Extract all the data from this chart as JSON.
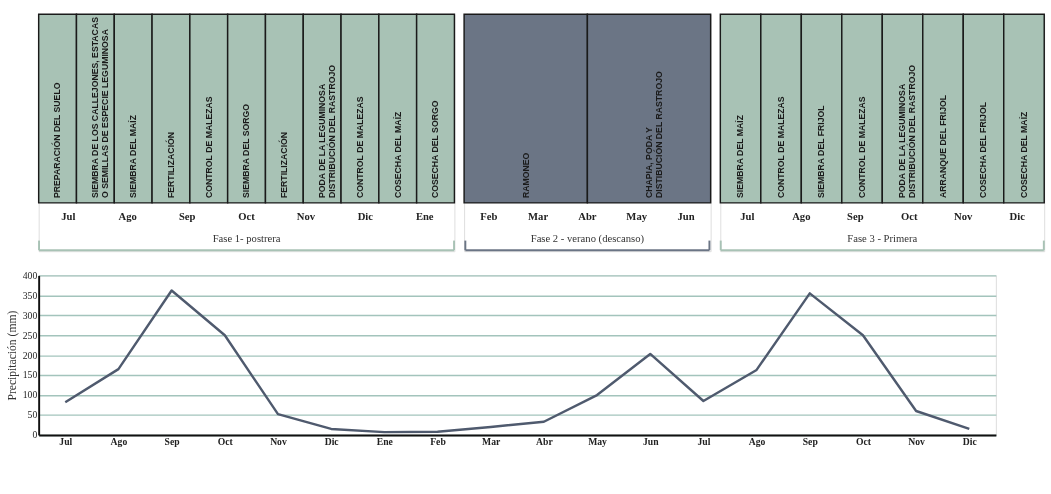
{
  "chart_data": [
    {
      "type": "other",
      "title": "Fase 1- postrera",
      "categories": [
        "PREPARACIÓN DEL SUELO",
        "SIEMBRA DE LOS CALLEJONES, ESTACAS O SEMILLAS DE ESPECIE LEGUMINOSA",
        "SIEMBRA DEL MAÍZ",
        "FERTILIZACIÓN",
        "CONTROL DE MALEZAS",
        "SIEMBRA DEL SORGO",
        "FERTILIZACIÓN",
        "PODA DE LA LEGUMINOSA DISTRIBUCIÓN DEL RASTROJO",
        "CONTROL DE MALEZAS",
        "COSECHA DEL MAÍZ",
        "COSECHA DEL SORGO"
      ],
      "colors": [
        "#a8c2b5",
        "#a8c2b5",
        "#a8c2b5",
        "#a8c2b5",
        "#a8c2b5",
        "#a8c2b5",
        "#a8c2b5",
        "#a8c2b5",
        "#a8c2b5",
        "#a8c2b5",
        "#a8c2b5"
      ],
      "annotations": [
        "Jul",
        "Ago",
        "Sep",
        "Oct",
        "Nov",
        "Dic",
        "Ene"
      ]
    },
    {
      "type": "other",
      "title": "Fase 2 - verano (descanso)",
      "categories": [
        "RAMONEO",
        "CHAPIA, PODA Y DISTIBUCIÓN DEL RASTROJO"
      ],
      "colors": [
        "#6b7585",
        "#6b7585"
      ],
      "annotations": [
        "Feb",
        "Mar",
        "Abr",
        "May",
        "Jun"
      ]
    },
    {
      "type": "other",
      "title": "Fase 3 - Primera",
      "categories": [
        "SIEMBRA DEL MAÍZ",
        "CONTROL DE MALEZAS",
        "SIEMBRA DEL FRIJOL",
        "CONTROL DE MALEZAS",
        "PODA DE LA LEGUMINOSA DISTRIBUCIÓN DEL RASTROJO",
        "ARRANQUE DEL FRIJOL",
        "COSECHA DEL FRIJOL",
        "COSECHA DEL MAÍZ"
      ],
      "colors": [
        "#a8c2b5",
        "#a8c2b5",
        "#a8c2b5",
        "#a8c2b5",
        "#a8c2b5",
        "#a8c2b5",
        "#a8c2b5",
        "#a8c2b5"
      ],
      "annotations": [
        "Jul",
        "Ago",
        "Sep",
        "Oct",
        "Nov",
        "Dic"
      ]
    },
    {
      "type": "line",
      "ylabel": "Precipitación (mm)",
      "categories": [
        "Jul",
        "Ago",
        "Sep",
        "Oct",
        "Nov",
        "Dic",
        "Ene",
        "Feb",
        "Mar",
        "Abr",
        "May",
        "Jun",
        "Jul",
        "Ago",
        "Sep",
        "Oct",
        "Nov",
        "Dic"
      ],
      "series": [
        {
          "color": "#4f5a6e",
          "values": [
            82,
            165,
            362,
            250,
            52,
            15,
            7,
            8,
            20,
            33,
            100,
            203,
            85,
            163,
            355,
            250,
            60,
            15
          ]
        }
      ],
      "ylim": [
        0,
        400
      ],
      "yticks": [
        0,
        50,
        100,
        150,
        200,
        250,
        300,
        350,
        400
      ],
      "grid": "y",
      "marker": "none",
      "line_style": "solid"
    }
  ]
}
